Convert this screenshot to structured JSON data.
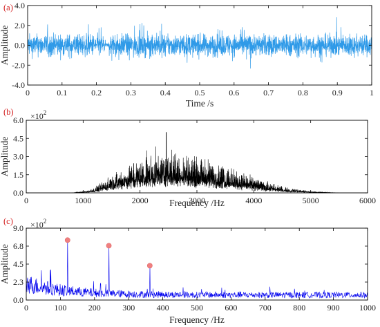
{
  "chart_data": [
    {
      "panel": "(a)",
      "type": "line",
      "description": "time-domain vibration signal",
      "xlabel": "Time /s",
      "ylabel": "Amplitude",
      "xlim": [
        0,
        1
      ],
      "ylim": [
        -4.0,
        4.0
      ],
      "xticks": [
        "0",
        "0.1",
        "0.2",
        "0.3",
        "0.4",
        "0.5",
        "0.6",
        "0.7",
        "0.8",
        "0.9",
        "1"
      ],
      "yticks": [
        "-4.0",
        "-2.0",
        "0.0",
        "2.0",
        "4.0"
      ],
      "color": "#2f9ae8",
      "signal": {
        "typical_amplitude_range": [
          -2.5,
          2.5
        ],
        "max_abs_amplitude": 3.0
      }
    },
    {
      "panel": "(b)",
      "type": "line",
      "description": "frequency spectrum",
      "xlabel": "Frequency /Hz",
      "ylabel": "Amplitude",
      "multiplier": "×10",
      "multiplier_exp": "2",
      "xlim": [
        0,
        6000
      ],
      "ylim": [
        0,
        6.0
      ],
      "xticks": [
        "0",
        "1000",
        "2000",
        "3000",
        "4000",
        "5000",
        "6000"
      ],
      "yticks": [
        "0.0",
        "1.5",
        "3.0",
        "4.5",
        "6.0"
      ],
      "color": "#000000",
      "envelope": {
        "x": [
          800,
          1000,
          1200,
          1500,
          2000,
          2500,
          3000,
          3500,
          4000,
          4500,
          5000,
          5500
        ],
        "y": [
          0.0,
          0.1,
          0.3,
          1.2,
          2.2,
          2.8,
          2.4,
          1.8,
          1.0,
          0.4,
          0.1,
          0.0
        ]
      },
      "peak": {
        "x": 2460,
        "y": 5.0
      }
    },
    {
      "panel": "(c)",
      "type": "line",
      "description": "envelope spectrum with marked fault harmonics",
      "xlabel": "Frequency /Hz",
      "ylabel": "Amplitude",
      "multiplier": "×10",
      "multiplier_exp": "2",
      "xlim": [
        0,
        1000
      ],
      "ylim": [
        0,
        9.0
      ],
      "xticks": [
        "0",
        "100",
        "200",
        "300",
        "400",
        "500",
        "600",
        "700",
        "800",
        "900",
        "1000"
      ],
      "yticks": [
        "0.0",
        "2.3",
        "4.5",
        "6.8",
        "9.0"
      ],
      "color": "#0000ee",
      "marker_color": "#f08080",
      "peaks": [
        {
          "x": 121,
          "y": 7.5
        },
        {
          "x": 242,
          "y": 6.8
        },
        {
          "x": 362,
          "y": 4.3
        }
      ]
    }
  ]
}
